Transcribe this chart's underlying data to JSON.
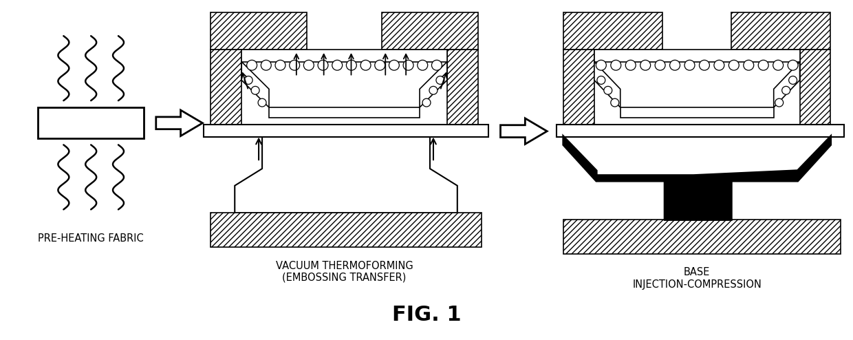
{
  "bg_color": "#ffffff",
  "line_color": "#000000",
  "title": "FIG. 1",
  "title_fontsize": 22,
  "title_bold": true,
  "label1": "PRE-HEATING FABRIC",
  "label2": "VACUUM THERMOFORMING\n(EMBOSSING TRANSFER)",
  "label3": "BASE\nINJECTION-COMPRESSION",
  "label_fontsize": 10.5,
  "fig_width": 12.4,
  "fig_height": 4.94,
  "dpi": 100
}
